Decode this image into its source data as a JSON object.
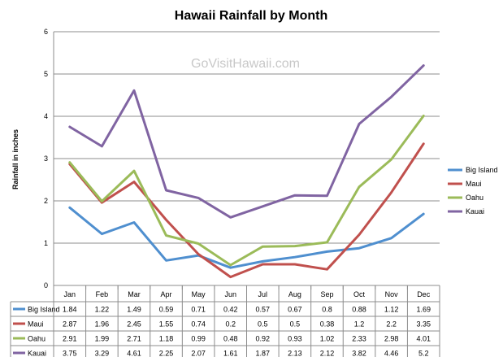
{
  "chart_data": {
    "type": "line",
    "title": "Hawaii Rainfall by Month",
    "watermark": "GoVisitHawaii.com",
    "xlabel": "",
    "ylabel": "Rainfall in inches",
    "ylim": [
      0,
      6
    ],
    "yticks": [
      "0",
      "1",
      "2",
      "3",
      "4",
      "5",
      "6"
    ],
    "grid": true,
    "legend_position": "right",
    "has_data_table": true,
    "categories": [
      "Jan",
      "Feb",
      "Mar",
      "Apr",
      "May",
      "Jun",
      "Jul",
      "Aug",
      "Sep",
      "Oct",
      "Nov",
      "Dec"
    ],
    "series": [
      {
        "name": "Big Island",
        "color": "#4f8fcf",
        "values": [
          1.84,
          1.22,
          1.49,
          0.59,
          0.71,
          0.42,
          0.57,
          0.67,
          0.8,
          0.88,
          1.12,
          1.69
        ],
        "labels": [
          "1.84",
          "1.22",
          "1.49",
          "0.59",
          "0.71",
          "0.42",
          "0.57",
          "0.67",
          "0.8",
          "0.88",
          "1.12",
          "1.69"
        ]
      },
      {
        "name": "Maui",
        "color": "#c0504d",
        "values": [
          2.87,
          1.96,
          2.45,
          1.55,
          0.74,
          0.2,
          0.5,
          0.5,
          0.38,
          1.2,
          2.2,
          3.35
        ],
        "labels": [
          "2.87",
          "1.96",
          "2.45",
          "1.55",
          "0.74",
          "0.2",
          "0.5",
          "0.5",
          "0.38",
          "1.2",
          "2.2",
          "3.35"
        ]
      },
      {
        "name": "Oahu",
        "color": "#9bbb59",
        "values": [
          2.91,
          1.99,
          2.71,
          1.18,
          0.99,
          0.48,
          0.92,
          0.93,
          1.02,
          2.33,
          2.98,
          4.01
        ],
        "labels": [
          "2.91",
          "1.99",
          "2.71",
          "1.18",
          "0.99",
          "0.48",
          "0.92",
          "0.93",
          "1.02",
          "2.33",
          "2.98",
          "4.01"
        ]
      },
      {
        "name": "Kauai",
        "color": "#8064a2",
        "values": [
          3.75,
          3.29,
          4.61,
          2.25,
          2.07,
          1.61,
          1.87,
          2.13,
          2.12,
          3.82,
          4.46,
          5.2
        ],
        "labels": [
          "3.75",
          "3.29",
          "4.61",
          "2.25",
          "2.07",
          "1.61",
          "1.87",
          "2.13",
          "2.12",
          "3.82",
          "4.46",
          "5.2"
        ]
      }
    ]
  }
}
